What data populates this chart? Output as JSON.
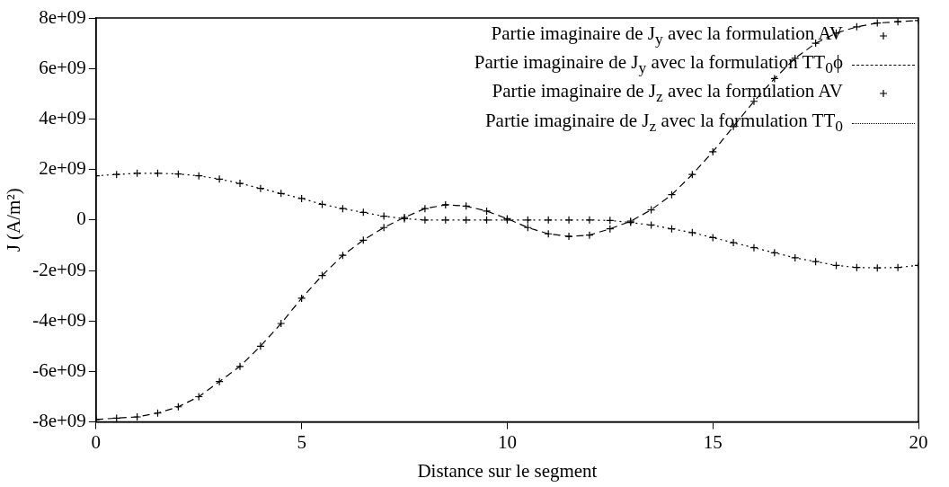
{
  "chart_data": {
    "type": "line",
    "xlabel": "Distance sur le segment",
    "ylabel": "J (A/m²)",
    "x": [
      0,
      0.5,
      1,
      1.5,
      2,
      2.5,
      3,
      3.5,
      4,
      4.5,
      5,
      5.5,
      6,
      6.5,
      7,
      7.5,
      8,
      8.5,
      9,
      9.5,
      10,
      10.5,
      11,
      11.5,
      12,
      12.5,
      13,
      13.5,
      14,
      14.5,
      15,
      15.5,
      16,
      16.5,
      17,
      17.5,
      18,
      18.5,
      19,
      19.5,
      20
    ],
    "series": [
      {
        "name": "Partie imaginaire de J$_{y}$ avec la formulation AV",
        "type": "scatter",
        "marker": "cross",
        "color": "#000000",
        "values": [
          -7900000000.0,
          -7850000000.0,
          -7800000000.0,
          -7650000000.0,
          -7400000000.0,
          -7000000000.0,
          -6400000000.0,
          -5800000000.0,
          -5000000000.0,
          -4100000000.0,
          -3100000000.0,
          -2200000000.0,
          -1400000000.0,
          -800000000.0,
          -300000000.0,
          100000000.0,
          450000000.0,
          600000000.0,
          550000000.0,
          350000000.0,
          50000000.0,
          -300000000.0,
          -550000000.0,
          -650000000.0,
          -600000000.0,
          -350000000.0,
          -50000000.0,
          400000000.0,
          1000000000.0,
          1800000000.0,
          2700000000.0,
          3700000000.0,
          4700000000.0,
          5600000000.0,
          6400000000.0,
          7000000000.0,
          7400000000.0,
          7650000000.0,
          7800000000.0,
          7850000000.0,
          7900000000.0
        ]
      },
      {
        "name": "Partie imaginaire de J$_{y}$ avec la formulation TT$_{0}$ϕ",
        "type": "line",
        "marker": "none",
        "line_style": "dashed",
        "color": "#000000",
        "values": [
          -7900000000.0,
          -7850000000.0,
          -7800000000.0,
          -7650000000.0,
          -7400000000.0,
          -7000000000.0,
          -6400000000.0,
          -5800000000.0,
          -5000000000.0,
          -4100000000.0,
          -3100000000.0,
          -2200000000.0,
          -1400000000.0,
          -800000000.0,
          -300000000.0,
          100000000.0,
          450000000.0,
          600000000.0,
          550000000.0,
          350000000.0,
          50000000.0,
          -300000000.0,
          -550000000.0,
          -650000000.0,
          -600000000.0,
          -350000000.0,
          -50000000.0,
          400000000.0,
          1000000000.0,
          1800000000.0,
          2700000000.0,
          3700000000.0,
          4700000000.0,
          5600000000.0,
          6400000000.0,
          7000000000.0,
          7400000000.0,
          7650000000.0,
          7800000000.0,
          7850000000.0,
          7900000000.0
        ]
      },
      {
        "name": "Partie imaginaire de J$_{z}$ avec la formulation AV",
        "type": "scatter",
        "marker": "cross",
        "color": "#000000",
        "values": [
          1750000000.0,
          1800000000.0,
          1850000000.0,
          1850000000.0,
          1820000000.0,
          1750000000.0,
          1620000000.0,
          1450000000.0,
          1250000000.0,
          1050000000.0,
          850000000.0,
          620000000.0,
          450000000.0,
          300000000.0,
          150000000.0,
          50000000.0,
          0,
          0,
          0,
          0,
          0,
          0,
          0,
          0,
          0,
          -20000000.0,
          -100000000.0,
          -200000000.0,
          -350000000.0,
          -500000000.0,
          -700000000.0,
          -900000000.0,
          -1100000000.0,
          -1300000000.0,
          -1500000000.0,
          -1650000000.0,
          -1800000000.0,
          -1880000000.0,
          -1900000000.0,
          -1880000000.0,
          -1800000000.0
        ]
      },
      {
        "name": "Partie imaginaire de J$_{z}$ avec la formulation TT$_{0}$",
        "type": "line",
        "marker": "none",
        "line_style": "dotted",
        "color": "#000000",
        "values": [
          1750000000.0,
          1800000000.0,
          1850000000.0,
          1850000000.0,
          1820000000.0,
          1750000000.0,
          1620000000.0,
          1450000000.0,
          1250000000.0,
          1050000000.0,
          850000000.0,
          620000000.0,
          450000000.0,
          300000000.0,
          150000000.0,
          50000000.0,
          0,
          0,
          0,
          0,
          0,
          0,
          0,
          0,
          0,
          -20000000.0,
          -100000000.0,
          -200000000.0,
          -350000000.0,
          -500000000.0,
          -700000000.0,
          -900000000.0,
          -1100000000.0,
          -1300000000.0,
          -1500000000.0,
          -1650000000.0,
          -1800000000.0,
          -1880000000.0,
          -1900000000.0,
          -1880000000.0,
          -1800000000.0
        ]
      }
    ],
    "xlim": [
      0,
      20
    ],
    "xticks": [
      0,
      5,
      10,
      15,
      20
    ],
    "ylim": [
      -8000000000.0,
      8000000000.0
    ],
    "yticks": [
      {
        "value": -8000000000.0,
        "label": "-8e+09"
      },
      {
        "value": -6000000000.0,
        "label": "-6e+09"
      },
      {
        "value": -4000000000.0,
        "label": "-4e+09"
      },
      {
        "value": -2000000000.0,
        "label": "-2e+09"
      },
      0,
      {
        "value": 2000000000.0,
        "label": "2e+09"
      },
      {
        "value": 4000000000.0,
        "label": "4e+09"
      },
      {
        "value": 6000000000.0,
        "label": "6e+09"
      },
      {
        "value": 8000000000.0,
        "label": "8e+09"
      }
    ],
    "grid": false,
    "legend": "top right"
  }
}
